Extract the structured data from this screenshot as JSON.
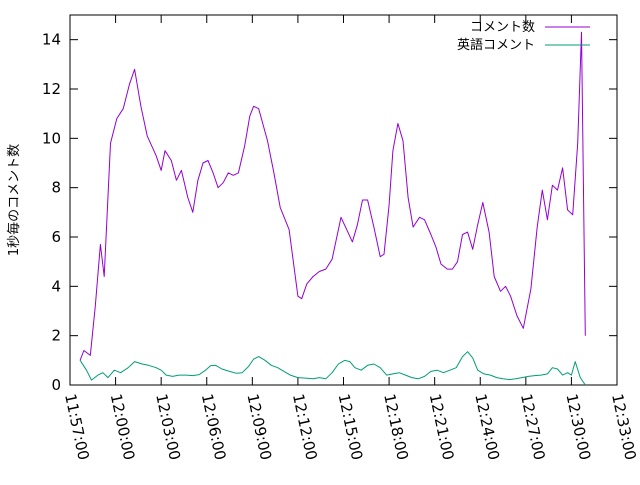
{
  "chart_data": {
    "type": "line",
    "title": "",
    "xlabel": "",
    "ylabel": "1秒毎のコメント数",
    "ylim": [
      0,
      15
    ],
    "yticks": [
      0,
      2,
      4,
      6,
      8,
      10,
      12,
      14
    ],
    "xlim": [
      "11:57:00",
      "12:33:00"
    ],
    "xticks": [
      "11:57:00",
      "12:00:00",
      "12:03:00",
      "12:06:00",
      "12:09:00",
      "12:12:00",
      "12:15:00",
      "12:18:00",
      "12:21:00",
      "12:24:00",
      "12:27:00",
      "12:30:00",
      "12:33:00"
    ],
    "grid": false,
    "legend_position": "top-right",
    "series": [
      {
        "name": "コメント数",
        "color": "#9400d3",
        "points": [
          [
            "11:57:40",
            1.0
          ],
          [
            "11:57:55",
            1.4
          ],
          [
            "11:58:20",
            1.2
          ],
          [
            "11:58:40",
            3.2
          ],
          [
            "11:59:00",
            5.7
          ],
          [
            "11:59:15",
            4.4
          ],
          [
            "11:59:40",
            9.8
          ],
          [
            "12:00:05",
            10.8
          ],
          [
            "12:00:30",
            11.2
          ],
          [
            "12:00:55",
            12.2
          ],
          [
            "12:01:15",
            12.8
          ],
          [
            "12:01:40",
            11.3
          ],
          [
            "12:02:05",
            10.1
          ],
          [
            "12:02:40",
            9.3
          ],
          [
            "12:03:00",
            8.7
          ],
          [
            "12:03:15",
            9.5
          ],
          [
            "12:03:40",
            9.1
          ],
          [
            "12:04:00",
            8.3
          ],
          [
            "12:04:20",
            8.7
          ],
          [
            "12:04:45",
            7.6
          ],
          [
            "12:05:05",
            7.0
          ],
          [
            "12:05:25",
            8.3
          ],
          [
            "12:05:45",
            9.0
          ],
          [
            "12:06:05",
            9.1
          ],
          [
            "12:06:25",
            8.6
          ],
          [
            "12:06:45",
            8.0
          ],
          [
            "12:07:05",
            8.2
          ],
          [
            "12:07:25",
            8.6
          ],
          [
            "12:07:45",
            8.5
          ],
          [
            "12:08:05",
            8.6
          ],
          [
            "12:08:30",
            9.7
          ],
          [
            "12:08:50",
            10.9
          ],
          [
            "12:09:05",
            11.3
          ],
          [
            "12:09:25",
            11.2
          ],
          [
            "12:10:00",
            9.9
          ],
          [
            "12:10:25",
            8.6
          ],
          [
            "12:10:50",
            7.2
          ],
          [
            "12:11:25",
            6.3
          ],
          [
            "12:12:00",
            3.6
          ],
          [
            "12:12:15",
            3.5
          ],
          [
            "12:12:35",
            4.1
          ],
          [
            "12:13:00",
            4.4
          ],
          [
            "12:13:25",
            4.6
          ],
          [
            "12:13:50",
            4.7
          ],
          [
            "12:14:15",
            5.1
          ],
          [
            "12:14:50",
            6.8
          ],
          [
            "12:15:35",
            5.8
          ],
          [
            "12:15:55",
            6.5
          ],
          [
            "12:16:15",
            7.5
          ],
          [
            "12:16:35",
            7.5
          ],
          [
            "12:17:00",
            6.4
          ],
          [
            "12:17:25",
            5.2
          ],
          [
            "12:17:40",
            5.3
          ],
          [
            "12:18:00",
            7.3
          ],
          [
            "12:18:15",
            9.5
          ],
          [
            "12:18:35",
            10.6
          ],
          [
            "12:18:55",
            9.9
          ],
          [
            "12:19:15",
            7.6
          ],
          [
            "12:19:35",
            6.4
          ],
          [
            "12:20:00",
            6.8
          ],
          [
            "12:20:20",
            6.7
          ],
          [
            "12:20:45",
            6.1
          ],
          [
            "12:21:05",
            5.6
          ],
          [
            "12:21:25",
            4.9
          ],
          [
            "12:21:50",
            4.7
          ],
          [
            "12:22:10",
            4.7
          ],
          [
            "12:22:30",
            5.0
          ],
          [
            "12:22:50",
            6.1
          ],
          [
            "12:23:10",
            6.2
          ],
          [
            "12:23:30",
            5.5
          ],
          [
            "12:23:50",
            6.5
          ],
          [
            "12:24:10",
            7.4
          ],
          [
            "12:24:35",
            6.2
          ],
          [
            "12:24:55",
            4.4
          ],
          [
            "12:25:20",
            3.8
          ],
          [
            "12:25:40",
            4.0
          ],
          [
            "12:26:00",
            3.6
          ],
          [
            "12:26:25",
            2.8
          ],
          [
            "12:26:50",
            2.3
          ],
          [
            "12:27:20",
            3.9
          ],
          [
            "12:27:45",
            6.4
          ],
          [
            "12:28:05",
            7.9
          ],
          [
            "12:28:25",
            6.7
          ],
          [
            "12:28:45",
            8.1
          ],
          [
            "12:29:05",
            7.9
          ],
          [
            "12:29:25",
            8.8
          ],
          [
            "12:29:45",
            7.1
          ],
          [
            "12:30:05",
            6.9
          ],
          [
            "12:30:25",
            9.8
          ],
          [
            "12:30:40",
            14.3
          ],
          [
            "12:30:55",
            2.0
          ]
        ]
      },
      {
        "name": "英語コメント",
        "color": "#009e73",
        "points": [
          [
            "11:57:40",
            1.0
          ],
          [
            "11:58:05",
            0.6
          ],
          [
            "11:58:25",
            0.2
          ],
          [
            "11:58:50",
            0.4
          ],
          [
            "11:59:10",
            0.5
          ],
          [
            "11:59:30",
            0.3
          ],
          [
            "11:59:55",
            0.6
          ],
          [
            "12:00:20",
            0.5
          ],
          [
            "12:00:50",
            0.7
          ],
          [
            "12:01:15",
            0.95
          ],
          [
            "12:01:45",
            0.85
          ],
          [
            "12:02:10",
            0.8
          ],
          [
            "12:02:40",
            0.7
          ],
          [
            "12:03:00",
            0.6
          ],
          [
            "12:03:20",
            0.4
          ],
          [
            "12:03:45",
            0.35
          ],
          [
            "12:04:10",
            0.4
          ],
          [
            "12:04:40",
            0.4
          ],
          [
            "12:05:05",
            0.38
          ],
          [
            "12:05:30",
            0.42
          ],
          [
            "12:05:55",
            0.6
          ],
          [
            "12:06:15",
            0.78
          ],
          [
            "12:06:35",
            0.8
          ],
          [
            "12:07:00",
            0.65
          ],
          [
            "12:07:30",
            0.55
          ],
          [
            "12:07:55",
            0.48
          ],
          [
            "12:08:20",
            0.5
          ],
          [
            "12:08:45",
            0.75
          ],
          [
            "12:09:05",
            1.05
          ],
          [
            "12:09:25",
            1.15
          ],
          [
            "12:09:50",
            1.0
          ],
          [
            "12:10:15",
            0.8
          ],
          [
            "12:10:40",
            0.7
          ],
          [
            "12:11:05",
            0.55
          ],
          [
            "12:11:30",
            0.4
          ],
          [
            "12:12:00",
            0.3
          ],
          [
            "12:12:30",
            0.28
          ],
          [
            "12:13:00",
            0.25
          ],
          [
            "12:13:25",
            0.3
          ],
          [
            "12:13:50",
            0.25
          ],
          [
            "12:14:15",
            0.5
          ],
          [
            "12:14:40",
            0.85
          ],
          [
            "12:15:05",
            1.0
          ],
          [
            "12:15:25",
            0.95
          ],
          [
            "12:15:45",
            0.7
          ],
          [
            "12:16:10",
            0.6
          ],
          [
            "12:16:35",
            0.8
          ],
          [
            "12:17:00",
            0.85
          ],
          [
            "12:17:25",
            0.7
          ],
          [
            "12:17:50",
            0.4
          ],
          [
            "12:18:15",
            0.45
          ],
          [
            "12:18:40",
            0.5
          ],
          [
            "12:19:05",
            0.4
          ],
          [
            "12:19:30",
            0.3
          ],
          [
            "12:19:55",
            0.25
          ],
          [
            "12:20:20",
            0.35
          ],
          [
            "12:20:45",
            0.55
          ],
          [
            "12:21:10",
            0.6
          ],
          [
            "12:21:35",
            0.5
          ],
          [
            "12:22:00",
            0.6
          ],
          [
            "12:22:25",
            0.7
          ],
          [
            "12:22:50",
            1.15
          ],
          [
            "12:23:10",
            1.35
          ],
          [
            "12:23:30",
            1.1
          ],
          [
            "12:23:50",
            0.6
          ],
          [
            "12:24:15",
            0.45
          ],
          [
            "12:24:40",
            0.4
          ],
          [
            "12:25:05",
            0.3
          ],
          [
            "12:25:30",
            0.25
          ],
          [
            "12:25:55",
            0.22
          ],
          [
            "12:26:20",
            0.25
          ],
          [
            "12:26:45",
            0.3
          ],
          [
            "12:27:10",
            0.35
          ],
          [
            "12:27:35",
            0.38
          ],
          [
            "12:28:00",
            0.4
          ],
          [
            "12:28:25",
            0.45
          ],
          [
            "12:28:45",
            0.7
          ],
          [
            "12:29:05",
            0.65
          ],
          [
            "12:29:25",
            0.4
          ],
          [
            "12:29:45",
            0.5
          ],
          [
            "12:30:00",
            0.4
          ],
          [
            "12:30:15",
            0.95
          ],
          [
            "12:30:35",
            0.3
          ],
          [
            "12:30:55",
            0.0
          ]
        ]
      }
    ]
  }
}
